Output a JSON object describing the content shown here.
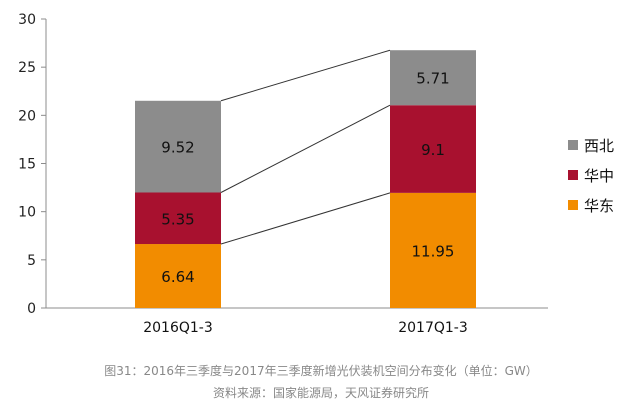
{
  "chart_data": {
    "type": "bar",
    "stacked": true,
    "categories": [
      "2016Q1-3",
      "2017Q1-3"
    ],
    "series": [
      {
        "name": "华东",
        "values": [
          6.64,
          11.95
        ],
        "color": "#F28C00",
        "labels": [
          "6.64",
          "11.95"
        ]
      },
      {
        "name": "华中",
        "values": [
          5.35,
          9.1
        ],
        "color": "#A8112F",
        "labels": [
          "5.35",
          "9.1"
        ]
      },
      {
        "name": "西北",
        "values": [
          9.52,
          5.71
        ],
        "color": "#8C8C8C",
        "labels": [
          "9.52",
          "5.71"
        ]
      }
    ],
    "ylim": [
      0,
      30
    ],
    "yticks": [
      0,
      5,
      10,
      15,
      20,
      25,
      30
    ],
    "grid": false,
    "legend_position": "right",
    "legend_order": [
      "西北",
      "华中",
      "华东"
    ],
    "connector_lines": true
  },
  "caption": {
    "title": "图31：2016年三季度与2017年三季度新增光伏装机空间分布变化（单位：GW）",
    "source": "资料来源：国家能源局，天风证券研究所"
  }
}
